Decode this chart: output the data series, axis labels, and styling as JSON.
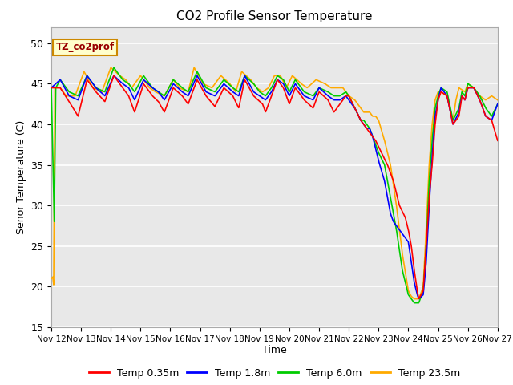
{
  "title": "CO2 Profile Sensor Temperature",
  "xlabel": "Time",
  "ylabel": "Senor Temperature (C)",
  "ylim": [
    15,
    52
  ],
  "yticks": [
    15,
    20,
    25,
    30,
    35,
    40,
    45,
    50
  ],
  "legend_label": "TZ_co2prof",
  "series_labels": [
    "Temp 0.35m",
    "Temp 1.8m",
    "Temp 6.0m",
    "Temp 23.5m"
  ],
  "series_colors": [
    "#ff0000",
    "#0000ff",
    "#00cc00",
    "#ffaa00"
  ],
  "background_color": "#ffffff",
  "plot_bg_color": "#e8e8e8",
  "grid_color": "#ffffff",
  "xtick_labels": [
    "Nov 12",
    "Nov 13",
    "Nov 14",
    "Nov 15",
    "Nov 16",
    "Nov 17",
    "Nov 18",
    "Nov 19",
    "Nov 20",
    "Nov 21",
    "Nov 22",
    "Nov 23",
    "Nov 24",
    "Nov 25",
    "Nov 26",
    "Nov 27"
  ]
}
